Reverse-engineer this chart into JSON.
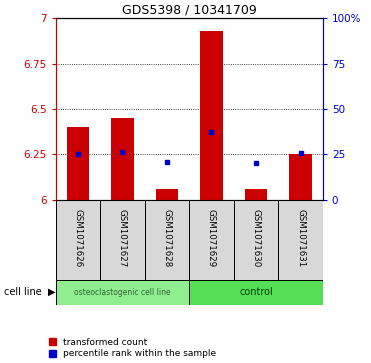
{
  "title": "GDS5398 / 10341709",
  "samples": [
    "GSM1071626",
    "GSM1071627",
    "GSM1071628",
    "GSM1071629",
    "GSM1071630",
    "GSM1071631"
  ],
  "red_values": [
    6.4,
    6.45,
    6.06,
    6.93,
    6.06,
    6.25
  ],
  "blue_values": [
    6.25,
    6.26,
    6.21,
    6.37,
    6.2,
    6.255
  ],
  "red_base": 6.0,
  "ylim_left": [
    6.0,
    7.0
  ],
  "ylim_right": [
    0,
    100
  ],
  "yticks_left": [
    6.0,
    6.25,
    6.5,
    6.75,
    7.0
  ],
  "ytick_labels_left": [
    "6",
    "6.25",
    "6.5",
    "6.75",
    "7"
  ],
  "yticks_right": [
    0,
    25,
    50,
    75,
    100
  ],
  "ytick_labels_right": [
    "0",
    "25",
    "50",
    "75",
    "100%"
  ],
  "group_boundary": 3,
  "red_color": "#cc0000",
  "blue_color": "#0000cc",
  "bar_width": 0.5,
  "cell_line_label": "cell line",
  "legend_red": "transformed count",
  "legend_blue": "percentile rank within the sample",
  "sample_bg_color": "#d8d8d8",
  "group1_color": "#90ee90",
  "group1_label": "osteoclastogenic cell line",
  "group2_color": "#55dd55",
  "group2_label": "control",
  "group1_text_color": "#336633",
  "group2_text_color": "#004400"
}
